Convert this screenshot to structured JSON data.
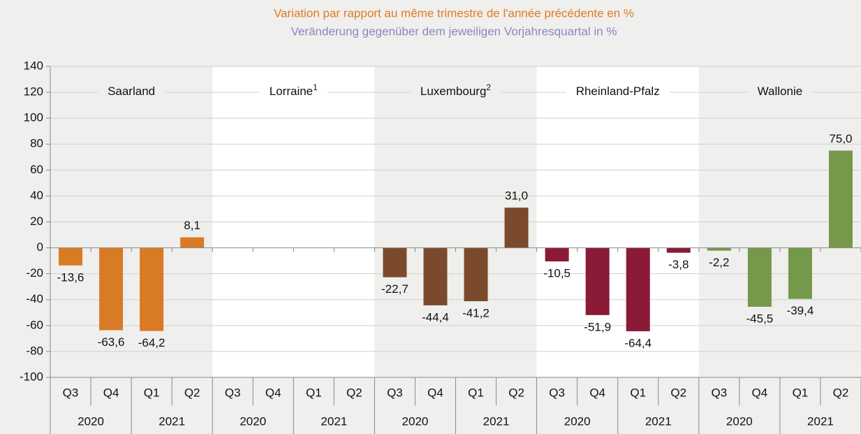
{
  "chart_data": {
    "type": "bar",
    "title": "Variation par rapport au même trimestre de l'année précédente en %",
    "subtitle": "Veränderung gegenüber dem jeweiligen Vorjahresquartal in %",
    "title_color": "#e07b20",
    "subtitle_color": "#8c86c2",
    "categories": [
      "Q3",
      "Q4",
      "Q1",
      "Q2"
    ],
    "years": [
      "2020",
      "2021"
    ],
    "series": [
      {
        "name": "Saarland",
        "color": "#d97a25",
        "values": [
          -13.6,
          -63.6,
          -64.2,
          8.1
        ],
        "value_labels": [
          "-13,6",
          "-63,6",
          "-64,2",
          "8,1"
        ]
      },
      {
        "name": "Lorraine",
        "footnote": "1",
        "color": "#b0b0b0",
        "values": [
          null,
          null,
          null,
          null
        ],
        "value_labels": [
          null,
          null,
          null,
          null
        ]
      },
      {
        "name": "Luxembourg",
        "footnote": "2",
        "color": "#7b4a2c",
        "values": [
          -22.7,
          -44.4,
          -41.2,
          31.0
        ],
        "value_labels": [
          "-22,7",
          "-44,4",
          "-41,2",
          "31,0"
        ]
      },
      {
        "name": "Rheinland-Pfalz",
        "color": "#8b1a36",
        "values": [
          -10.5,
          -51.9,
          -64.4,
          -3.8
        ],
        "value_labels": [
          "-10,5",
          "-51,9",
          "-64,4",
          "-3,8"
        ]
      },
      {
        "name": "Wallonie",
        "color": "#76984a",
        "values": [
          -2.2,
          -45.5,
          -39.4,
          75.0
        ],
        "value_labels": [
          "-2,2",
          "-45,5",
          "-39,4",
          "75,0"
        ]
      }
    ],
    "ylim": [
      -100,
      140
    ],
    "yticks": [
      -100,
      -80,
      -60,
      -40,
      -20,
      0,
      20,
      40,
      60,
      80,
      100,
      120,
      140
    ],
    "grid": true
  }
}
